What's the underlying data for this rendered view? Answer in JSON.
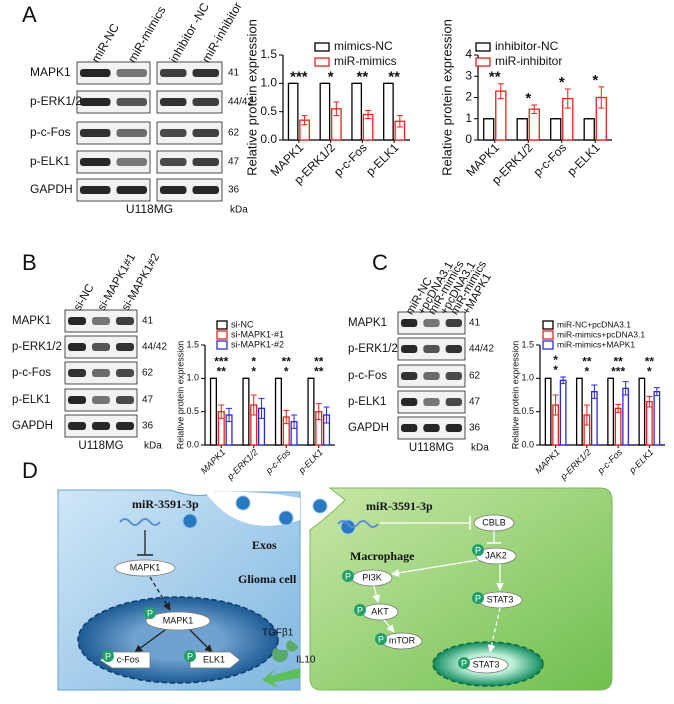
{
  "panel_labels": [
    "A",
    "B",
    "C",
    "D"
  ],
  "chart_data": [
    {
      "type": "bar",
      "y_label": "Relative protein expression",
      "categories": [
        "MAPK1",
        "p-ERK1/2",
        "p-c-Fos",
        "p-ELK1"
      ],
      "series": [
        {
          "name": "mimics-NC",
          "color": "#000000",
          "values": [
            1,
            1,
            1,
            1
          ],
          "errors": [
            0,
            0,
            0,
            0
          ]
        },
        {
          "name": "miR-mimics",
          "color": "#e8241c",
          "values": [
            0.35,
            0.55,
            0.45,
            0.33
          ],
          "errors": [
            0.08,
            0.12,
            0.07,
            0.1
          ]
        }
      ],
      "annotations": [
        [
          "***"
        ],
        [
          "*"
        ],
        [
          "**"
        ],
        [
          "**"
        ]
      ],
      "ylim": [
        0,
        1.5
      ],
      "yticks": [
        {
          "value": 0,
          "label": "0.0"
        },
        {
          "value": 0.5,
          "label": "0.5"
        },
        {
          "value": 1,
          "label": "1.0"
        },
        {
          "value": 1.5,
          "label": "1.5"
        }
      ]
    },
    {
      "type": "bar",
      "y_label": "Relative protein expression",
      "categories": [
        "MAPK1",
        "p-ERK1/2",
        "p-c-Fos",
        "p-ELK1"
      ],
      "series": [
        {
          "name": "inhibitor-NC",
          "color": "#000000",
          "values": [
            1,
            1,
            1,
            1
          ],
          "errors": [
            0,
            0,
            0,
            0
          ]
        },
        {
          "name": "miR-inhibitor",
          "color": "#e8241c",
          "values": [
            2.3,
            1.45,
            1.95,
            2.0
          ],
          "errors": [
            0.35,
            0.2,
            0.45,
            0.5
          ]
        }
      ],
      "annotations": [
        [
          "**"
        ],
        [
          "*"
        ],
        [
          "*"
        ],
        [
          "*"
        ]
      ],
      "ylim": [
        0,
        4
      ],
      "yticks": [
        0,
        1,
        2,
        3,
        4
      ]
    },
    {
      "type": "bar",
      "y_label": "Relative protein expression",
      "categories": [
        "MAPK1",
        "p-ERK1/2",
        "p-c-Fos",
        "p-ELK1"
      ],
      "series": [
        {
          "name": "si-NC",
          "color": "#000000",
          "values": [
            1,
            1,
            1,
            1
          ],
          "errors": [
            0,
            0,
            0,
            0
          ]
        },
        {
          "name": "si-MAPK1-#1",
          "color": "#e8241c",
          "values": [
            0.5,
            0.6,
            0.42,
            0.5
          ],
          "errors": [
            0.1,
            0.15,
            0.1,
            0.12
          ]
        },
        {
          "name": "si-MAPK1-#2",
          "color": "#2b2bd9",
          "values": [
            0.45,
            0.55,
            0.35,
            0.45
          ],
          "errors": [
            0.1,
            0.15,
            0.1,
            0.12
          ]
        }
      ],
      "annotations": [
        [
          "***",
          "**"
        ],
        [
          "*",
          "*"
        ],
        [
          "**",
          "*"
        ],
        [
          "**",
          "**"
        ]
      ],
      "ylim": [
        0,
        1.5
      ],
      "yticks": [
        {
          "value": 0,
          "label": "0.0"
        },
        {
          "value": 0.5,
          "label": "0.5"
        },
        {
          "value": 1,
          "label": "1.0"
        },
        {
          "value": 1.5,
          "label": "1.5"
        }
      ]
    },
    {
      "type": "bar",
      "y_label": "Relative protein expression",
      "categories": [
        "MAPK1",
        "p-ERK1/2",
        "p-c-Fos",
        "p-ELK1"
      ],
      "series": [
        {
          "name": "miR-NC+pcDNA3.1",
          "color": "#000000",
          "values": [
            1,
            1,
            1,
            1
          ],
          "errors": [
            0,
            0,
            0,
            0
          ]
        },
        {
          "name": "miR-mimics+pcDNA3.1",
          "color": "#e8241c",
          "values": [
            0.6,
            0.45,
            0.55,
            0.65
          ],
          "errors": [
            0.15,
            0.15,
            0.06,
            0.08
          ]
        },
        {
          "name": "miR-mimics+MAPK1",
          "color": "#2b2bd9",
          "values": [
            0.97,
            0.8,
            0.85,
            0.8
          ],
          "errors": [
            0.05,
            0.1,
            0.1,
            0.06
          ]
        }
      ],
      "annotations": [
        [
          "*",
          "*"
        ],
        [
          "**",
          "*"
        ],
        [
          "**",
          "***"
        ],
        [
          "**",
          "*"
        ]
      ],
      "ylim": [
        0,
        1.5
      ],
      "yticks": [
        {
          "value": 0,
          "label": "0.0"
        },
        {
          "value": 0.5,
          "label": "0.5"
        },
        {
          "value": 1,
          "label": "1.0"
        },
        {
          "value": 1.5,
          "label": "1.5"
        }
      ]
    }
  ],
  "blots": [
    {
      "lanes": [
        [
          "miR-NC"
        ],
        [
          "miR-mimics"
        ],
        [
          "inhibitor -NC"
        ],
        [
          "miR-inhibitor"
        ]
      ],
      "rows": [
        "MAPK1",
        "p-ERK1/2",
        "p-c-Fos",
        "p-ELK1",
        "GAPDH"
      ],
      "sizes": [
        "41",
        "44/42",
        "62",
        "47",
        "36"
      ],
      "unit": "kDa",
      "cell_line": "U118MG"
    },
    {
      "lanes": [
        [
          "si-NC"
        ],
        [
          "si-MAPK1#1"
        ],
        [
          "si-MAPK1#2"
        ]
      ],
      "rows": [
        "MAPK1",
        "p-ERK1/2",
        "p-c-Fos",
        "p-ELK1",
        "GAPDH"
      ],
      "sizes": [
        "41",
        "44/42",
        "62",
        "47",
        "36"
      ],
      "unit": "kDa",
      "cell_line": "U118MG"
    },
    {
      "lanes": [
        [
          "miR-NC",
          "+pcDNA3.1"
        ],
        [
          "miR-mimics",
          "+pcDNA3.1"
        ],
        [
          "miR-mimics",
          "+MAPK1"
        ]
      ],
      "rows": [
        "MAPK1",
        "p-ERK1/2",
        "p-c-Fos",
        "p-ELK1",
        "GAPDH"
      ],
      "sizes": [
        "41",
        "44/42",
        "62",
        "47",
        "36"
      ],
      "unit": "kDa",
      "cell_line": "U118MG"
    }
  ],
  "diagram": {
    "phospho": "P",
    "glioma": {
      "mirna": "miR-3591-3p",
      "target": "MAPK1",
      "cell": "Glioma cell",
      "nuclear": "MAPK1",
      "left": "c-Fos",
      "right": "ELK1"
    },
    "exos": "Exos",
    "cytokines": [
      "TGFβ1",
      "IL10"
    ],
    "macrophage": {
      "mirna": "miR-3591-3p",
      "cell": "Macrophage",
      "nodes": [
        "CBLB",
        "JAK2",
        "PI3K",
        "AKT",
        "mTOR",
        "STAT3",
        "STAT3"
      ]
    }
  }
}
